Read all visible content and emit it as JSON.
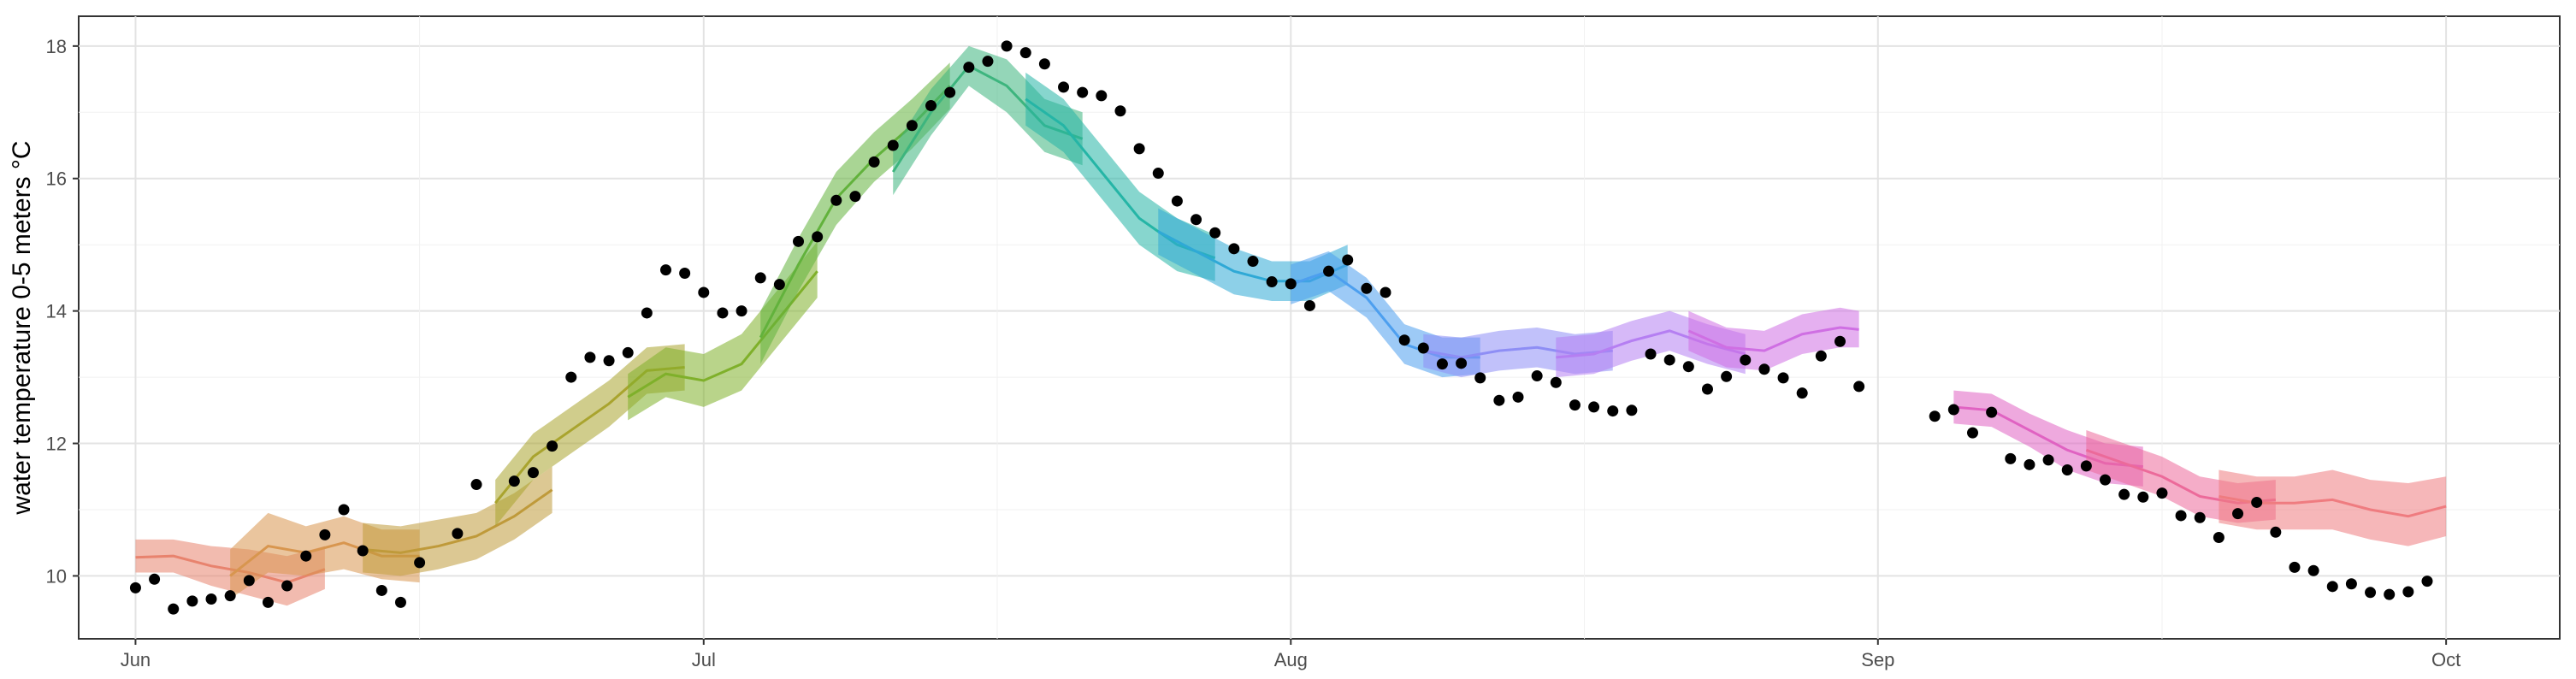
{
  "chart_data": {
    "type": "line",
    "title": "",
    "xlabel": "",
    "ylabel": "water temperature 0-5 meters °C",
    "x_axis": {
      "ticks": [
        "2021-06-01",
        "2021-07-01",
        "2021-08-01",
        "2021-09-01",
        "2021-10-01"
      ],
      "tick_labels": [
        "Jun",
        "Jul",
        "Aug",
        "Sep",
        "Oct"
      ],
      "range": [
        "2021-05-29",
        "2021-10-07"
      ]
    },
    "y_axis": {
      "ticks": [
        10,
        12,
        14,
        16,
        18
      ],
      "tick_labels": [
        "10",
        "12",
        "14",
        "16",
        "18"
      ],
      "range": [
        9.05,
        18.45
      ]
    },
    "grid": true,
    "legend": "none",
    "forecast_bands": [
      {
        "color": "#E8836E",
        "x": [
          "2021-06-01",
          "2021-06-03",
          "2021-06-05",
          "2021-06-07",
          "2021-06-09",
          "2021-06-11"
        ],
        "mean": [
          10.28,
          10.3,
          10.15,
          10.05,
          9.9,
          10.1
        ],
        "lower": [
          10.05,
          10.05,
          9.85,
          9.7,
          9.55,
          9.8
        ],
        "upper": [
          10.55,
          10.55,
          10.45,
          10.4,
          10.3,
          10.45
        ]
      },
      {
        "color": "#D8964F",
        "x": [
          "2021-06-06",
          "2021-06-08",
          "2021-06-10",
          "2021-06-12",
          "2021-06-14",
          "2021-06-16"
        ],
        "mean": [
          10.0,
          10.45,
          10.35,
          10.5,
          10.3,
          10.3
        ],
        "lower": [
          9.65,
          10.05,
          10.0,
          10.1,
          9.95,
          9.9
        ],
        "upper": [
          10.4,
          10.95,
          10.75,
          10.9,
          10.7,
          10.7
        ]
      },
      {
        "color": "#BF9A3A",
        "x": [
          "2021-06-13",
          "2021-06-15",
          "2021-06-17",
          "2021-06-19",
          "2021-06-21",
          "2021-06-23"
        ],
        "mean": [
          10.4,
          10.35,
          10.45,
          10.6,
          10.9,
          11.3
        ],
        "lower": [
          10.05,
          10.0,
          10.1,
          10.25,
          10.55,
          10.95
        ],
        "upper": [
          10.8,
          10.75,
          10.85,
          10.95,
          11.25,
          11.65
        ]
      },
      {
        "color": "#A9A42E",
        "x": [
          "2021-06-20",
          "2021-06-22",
          "2021-06-24",
          "2021-06-26",
          "2021-06-28",
          "2021-06-30"
        ],
        "mean": [
          11.1,
          11.8,
          12.2,
          12.6,
          13.1,
          13.15
        ],
        "lower": [
          10.75,
          11.45,
          11.85,
          12.25,
          12.75,
          12.8
        ],
        "upper": [
          11.45,
          12.15,
          12.55,
          12.95,
          13.45,
          13.5
        ]
      },
      {
        "color": "#7FB02A",
        "x": [
          "2021-06-27",
          "2021-06-29",
          "2021-07-01",
          "2021-07-03",
          "2021-07-05",
          "2021-07-07"
        ],
        "mean": [
          12.7,
          13.05,
          12.95,
          13.2,
          13.9,
          14.6
        ],
        "lower": [
          12.35,
          12.7,
          12.55,
          12.8,
          13.5,
          14.2
        ],
        "upper": [
          13.05,
          13.45,
          13.35,
          13.65,
          14.35,
          15.05
        ]
      },
      {
        "color": "#62B23C",
        "x": [
          "2021-07-04",
          "2021-07-06",
          "2021-07-08",
          "2021-07-10",
          "2021-07-12",
          "2021-07-14"
        ],
        "mean": [
          13.6,
          14.7,
          15.7,
          16.3,
          16.8,
          17.4
        ],
        "lower": [
          13.2,
          14.3,
          15.3,
          15.95,
          16.45,
          17.05
        ],
        "upper": [
          14.0,
          15.1,
          16.1,
          16.7,
          17.2,
          17.75
        ]
      },
      {
        "color": "#3DB57E",
        "x": [
          "2021-07-11",
          "2021-07-13",
          "2021-07-15",
          "2021-07-17",
          "2021-07-19",
          "2021-07-21"
        ],
        "mean": [
          16.1,
          17.0,
          17.7,
          17.4,
          16.8,
          16.6
        ],
        "lower": [
          15.75,
          16.65,
          17.4,
          17.0,
          16.4,
          16.2
        ],
        "upper": [
          16.45,
          17.35,
          18.0,
          17.8,
          17.2,
          17.0
        ]
      },
      {
        "color": "#25B5A6",
        "x": [
          "2021-07-18",
          "2021-07-20",
          "2021-07-22",
          "2021-07-24",
          "2021-07-26",
          "2021-07-28"
        ],
        "mean": [
          17.2,
          16.8,
          16.1,
          15.4,
          15.0,
          14.8
        ],
        "lower": [
          16.8,
          16.4,
          15.7,
          15.0,
          14.6,
          14.45
        ],
        "upper": [
          17.6,
          17.2,
          16.5,
          15.8,
          15.4,
          15.15
        ]
      },
      {
        "color": "#2FA9D6",
        "x": [
          "2021-07-25",
          "2021-07-27",
          "2021-07-29",
          "2021-07-31",
          "2021-08-02",
          "2021-08-04"
        ],
        "mean": [
          15.2,
          14.9,
          14.6,
          14.45,
          14.45,
          14.7
        ],
        "lower": [
          14.85,
          14.55,
          14.25,
          14.15,
          14.15,
          14.4
        ],
        "upper": [
          15.55,
          15.25,
          14.95,
          14.75,
          14.75,
          15.0
        ]
      },
      {
        "color": "#4D9FEF",
        "x": [
          "2021-08-01",
          "2021-08-03",
          "2021-08-05",
          "2021-08-07",
          "2021-08-09",
          "2021-08-11"
        ],
        "mean": [
          14.4,
          14.6,
          14.2,
          13.5,
          13.3,
          13.3
        ],
        "lower": [
          14.1,
          14.3,
          13.9,
          13.2,
          13.0,
          13.05
        ],
        "upper": [
          14.7,
          14.9,
          14.5,
          13.8,
          13.6,
          13.6
        ]
      },
      {
        "color": "#8E8EF5",
        "x": [
          "2021-08-08",
          "2021-08-10",
          "2021-08-12",
          "2021-08-14",
          "2021-08-16",
          "2021-08-18"
        ],
        "mean": [
          13.4,
          13.3,
          13.4,
          13.45,
          13.35,
          13.4
        ],
        "lower": [
          13.15,
          13.0,
          13.1,
          13.15,
          13.05,
          13.1
        ],
        "upper": [
          13.65,
          13.6,
          13.7,
          13.75,
          13.65,
          13.7
        ]
      },
      {
        "color": "#B57FF2",
        "x": [
          "2021-08-15",
          "2021-08-17",
          "2021-08-19",
          "2021-08-21",
          "2021-08-23",
          "2021-08-25"
        ],
        "mean": [
          13.3,
          13.35,
          13.55,
          13.7,
          13.5,
          13.35
        ],
        "lower": [
          13.0,
          13.05,
          13.25,
          13.4,
          13.2,
          13.05
        ],
        "upper": [
          13.6,
          13.65,
          13.85,
          14.0,
          13.8,
          13.65
        ]
      },
      {
        "color": "#CF6FE3",
        "x": [
          "2021-08-22",
          "2021-08-24",
          "2021-08-26",
          "2021-08-28",
          "2021-08-30",
          "2021-08-31"
        ],
        "mean": [
          13.7,
          13.45,
          13.4,
          13.65,
          13.75,
          13.72
        ],
        "lower": [
          13.4,
          13.15,
          13.1,
          13.35,
          13.45,
          13.45
        ],
        "upper": [
          14.0,
          13.75,
          13.7,
          13.95,
          14.05,
          14.0
        ]
      },
      {
        "color": "#E062C2",
        "x": [
          "2021-09-05",
          "2021-09-07",
          "2021-09-09",
          "2021-09-11",
          "2021-09-13",
          "2021-09-15"
        ],
        "mean": [
          12.55,
          12.5,
          12.2,
          11.9,
          11.7,
          11.65
        ],
        "lower": [
          12.3,
          12.25,
          11.95,
          11.6,
          11.4,
          11.35
        ],
        "upper": [
          12.8,
          12.75,
          12.45,
          12.2,
          12.0,
          11.95
        ]
      },
      {
        "color": "#EC6A9A",
        "x": [
          "2021-09-12",
          "2021-09-14",
          "2021-09-16",
          "2021-09-18",
          "2021-09-20",
          "2021-09-22"
        ],
        "mean": [
          11.9,
          11.7,
          11.5,
          11.2,
          11.1,
          11.15
        ],
        "lower": [
          11.6,
          11.4,
          11.2,
          10.9,
          10.8,
          10.85
        ],
        "upper": [
          12.2,
          12.0,
          11.8,
          11.5,
          11.4,
          11.45
        ]
      },
      {
        "color": "#EF7C80",
        "x": [
          "2021-09-19",
          "2021-09-21",
          "2021-09-23",
          "2021-09-25",
          "2021-09-27",
          "2021-09-29",
          "2021-10-01"
        ],
        "mean": [
          11.2,
          11.1,
          11.1,
          11.15,
          11.0,
          10.9,
          11.05
        ],
        "lower": [
          10.8,
          10.7,
          10.7,
          10.7,
          10.55,
          10.45,
          10.6
        ],
        "upper": [
          11.6,
          11.5,
          11.5,
          11.6,
          11.45,
          11.4,
          11.5
        ]
      }
    ],
    "observations": {
      "x": [
        "2021-06-01",
        "2021-06-02",
        "2021-06-03",
        "2021-06-04",
        "2021-06-05",
        "2021-06-06",
        "2021-06-07",
        "2021-06-08",
        "2021-06-09",
        "2021-06-10",
        "2021-06-11",
        "2021-06-12",
        "2021-06-13",
        "2021-06-14",
        "2021-06-15",
        "2021-06-16",
        "2021-06-18",
        "2021-06-19",
        "2021-06-21",
        "2021-06-22",
        "2021-06-23",
        "2021-06-24",
        "2021-06-25",
        "2021-06-26",
        "2021-06-27",
        "2021-06-28",
        "2021-06-29",
        "2021-06-30",
        "2021-07-01",
        "2021-07-02",
        "2021-07-03",
        "2021-07-04",
        "2021-07-05",
        "2021-07-06",
        "2021-07-07",
        "2021-07-08",
        "2021-07-09",
        "2021-07-10",
        "2021-07-11",
        "2021-07-12",
        "2021-07-13",
        "2021-07-14",
        "2021-07-15",
        "2021-07-16",
        "2021-07-17",
        "2021-07-18",
        "2021-07-19",
        "2021-07-20",
        "2021-07-21",
        "2021-07-22",
        "2021-07-23",
        "2021-07-24",
        "2021-07-25",
        "2021-07-26",
        "2021-07-27",
        "2021-07-28",
        "2021-07-29",
        "2021-07-30",
        "2021-07-31",
        "2021-08-01",
        "2021-08-02",
        "2021-08-03",
        "2021-08-04",
        "2021-08-05",
        "2021-08-06",
        "2021-08-07",
        "2021-08-08",
        "2021-08-09",
        "2021-08-10",
        "2021-08-11",
        "2021-08-12",
        "2021-08-13",
        "2021-08-14",
        "2021-08-15",
        "2021-08-16",
        "2021-08-17",
        "2021-08-18",
        "2021-08-19",
        "2021-08-20",
        "2021-08-21",
        "2021-08-22",
        "2021-08-23",
        "2021-08-24",
        "2021-08-25",
        "2021-08-26",
        "2021-08-27",
        "2021-08-28",
        "2021-08-29",
        "2021-08-30",
        "2021-08-31",
        "2021-09-04",
        "2021-09-05",
        "2021-09-06",
        "2021-09-07",
        "2021-09-08",
        "2021-09-09",
        "2021-09-10",
        "2021-09-11",
        "2021-09-12",
        "2021-09-13",
        "2021-09-14",
        "2021-09-15",
        "2021-09-16",
        "2021-09-17",
        "2021-09-18",
        "2021-09-19",
        "2021-09-20",
        "2021-09-21",
        "2021-09-22",
        "2021-09-23",
        "2021-09-24",
        "2021-09-25",
        "2021-09-26",
        "2021-09-27",
        "2021-09-28",
        "2021-09-29",
        "2021-09-30"
      ],
      "y": [
        9.82,
        9.95,
        9.5,
        9.62,
        9.65,
        9.7,
        9.93,
        9.6,
        9.85,
        10.3,
        10.62,
        11.0,
        10.38,
        9.78,
        9.6,
        10.2,
        10.64,
        11.38,
        11.43,
        11.56,
        11.96,
        13.0,
        13.3,
        13.25,
        13.37,
        13.97,
        14.62,
        14.57,
        14.28,
        13.97,
        14.0,
        14.5,
        14.4,
        15.05,
        15.12,
        15.67,
        15.73,
        16.25,
        16.5,
        16.8,
        17.1,
        17.3,
        17.68,
        17.77,
        18.0,
        17.9,
        17.73,
        17.38,
        17.3,
        17.25,
        17.02,
        16.45,
        16.08,
        15.66,
        15.38,
        15.18,
        14.94,
        14.75,
        14.44,
        14.41,
        14.08,
        14.6,
        14.77,
        14.34,
        14.28,
        13.56,
        13.44,
        13.2,
        13.21,
        12.99,
        12.65,
        12.7,
        13.02,
        12.92,
        12.58,
        12.55,
        12.49,
        12.5,
        13.35,
        13.26,
        13.16,
        12.82,
        13.01,
        13.26,
        13.12,
        12.99,
        12.76,
        13.32,
        13.54,
        12.86,
        12.41,
        12.51,
        12.16,
        12.47,
        11.77,
        11.68,
        11.75,
        11.6,
        11.66,
        11.45,
        11.23,
        11.19,
        11.25,
        10.91,
        10.88,
        10.58,
        10.94,
        11.11,
        10.66,
        10.13,
        10.08,
        9.84,
        9.88,
        9.75,
        9.72,
        9.76,
        9.92
      ]
    }
  }
}
